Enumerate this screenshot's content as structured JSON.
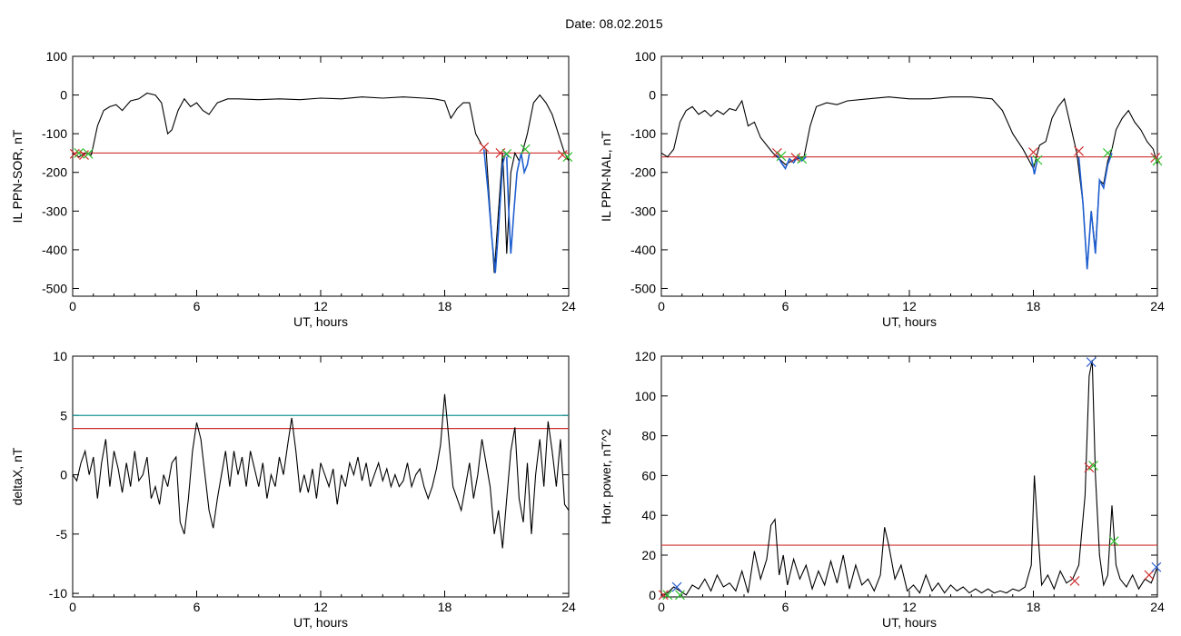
{
  "header": {
    "date_label": "Date:  08.02.2015"
  },
  "colors": {
    "trace": "#000000",
    "threshold": "#d03030",
    "threshold2": "#1a9a9a",
    "highlight": "#1f5fd0",
    "marker_red": "#d03030",
    "marker_green": "#2fc02f",
    "marker_blue": "#2f5fd0"
  },
  "chart_data": [
    {
      "type": "line",
      "id": "il-sor",
      "ylabel": "IL PPN-SOR, nT",
      "xlabel": "UT, hours",
      "xlim": [
        0,
        24
      ],
      "ylim": [
        -520,
        100
      ],
      "xticks": [
        0,
        6,
        12,
        18,
        24
      ],
      "yticks": [
        100,
        0,
        -100,
        -200,
        -300,
        -400,
        -500
      ],
      "threshold": -150,
      "series": [
        {
          "x": [
            0,
            0.3,
            0.6,
            0.9,
            1.2,
            1.5,
            1.8,
            2.1,
            2.4,
            2.8,
            3.2,
            3.6,
            4.0,
            4.3,
            4.6,
            4.8,
            5.1,
            5.4,
            5.7,
            6.0,
            6.3,
            6.6,
            7.0,
            7.5,
            8,
            9,
            10,
            11,
            12,
            13,
            14,
            15,
            16,
            17,
            17.5,
            18,
            18.3,
            18.6,
            18.9,
            19.2,
            19.5,
            19.8,
            20.0,
            20.2,
            20.4,
            20.6,
            20.8,
            20.9,
            21.0,
            21.2,
            21.4,
            21.6,
            21.8,
            22.0,
            22.3,
            22.6,
            22.9,
            23.2,
            23.5,
            23.8,
            24
          ],
          "y": [
            -150,
            -160,
            -150,
            -155,
            -80,
            -40,
            -30,
            -25,
            -40,
            -15,
            -10,
            5,
            0,
            -20,
            -100,
            -90,
            -40,
            -10,
            -30,
            -20,
            -40,
            -50,
            -20,
            -10,
            -10,
            -12,
            -10,
            -12,
            -8,
            -10,
            -5,
            -8,
            -5,
            -8,
            -10,
            -15,
            -60,
            -35,
            -20,
            -20,
            -100,
            -130,
            -140,
            -300,
            -460,
            -300,
            -150,
            -260,
            -410,
            -200,
            -150,
            -170,
            -140,
            -100,
            -20,
            0,
            -20,
            -50,
            -100,
            -150,
            -170
          ],
          "highlight": [
            {
              "x": [
                19.9,
                20.1,
                20.3,
                20.45,
                20.6,
                20.8,
                20.95,
                21.1
              ],
              "y": [
                -140,
                -250,
                -380,
                -460,
                -350,
                -180,
                -150,
                -160
              ]
            },
            {
              "x": [
                21.0,
                21.1,
                21.2,
                21.35,
                21.5,
                21.7
              ],
              "y": [
                -160,
                -300,
                -410,
                -300,
                -200,
                -150
              ]
            },
            {
              "x": [
                21.7,
                21.85,
                22.0,
                22.1
              ],
              "y": [
                -150,
                -200,
                -180,
                -150
              ]
            }
          ]
        }
      ],
      "markers": [
        {
          "x": 0.1,
          "y": -152,
          "color": "marker_red"
        },
        {
          "x": 0.3,
          "y": -150,
          "color": "marker_green"
        },
        {
          "x": 0.55,
          "y": -155,
          "color": "marker_red"
        },
        {
          "x": 0.75,
          "y": -152,
          "color": "marker_green"
        },
        {
          "x": 19.9,
          "y": -135,
          "color": "marker_red"
        },
        {
          "x": 20.7,
          "y": -150,
          "color": "marker_red"
        },
        {
          "x": 21.0,
          "y": -152,
          "color": "marker_green"
        },
        {
          "x": 21.9,
          "y": -140,
          "color": "marker_green"
        },
        {
          "x": 23.7,
          "y": -155,
          "color": "marker_red"
        },
        {
          "x": 23.95,
          "y": -160,
          "color": "marker_green"
        }
      ]
    },
    {
      "type": "line",
      "id": "il-nal",
      "ylabel": "IL PPN-NAL, nT",
      "xlabel": "UT, hours",
      "xlim": [
        0,
        24
      ],
      "ylim": [
        -520,
        100
      ],
      "xticks": [
        0,
        6,
        12,
        18,
        24
      ],
      "yticks": [
        100,
        0,
        -100,
        -200,
        -300,
        -400,
        -500
      ],
      "threshold": -160,
      "series": [
        {
          "x": [
            0,
            0.3,
            0.6,
            0.9,
            1.2,
            1.5,
            1.8,
            2.1,
            2.4,
            2.7,
            3.0,
            3.3,
            3.6,
            3.9,
            4.2,
            4.5,
            4.8,
            5.1,
            5.4,
            5.7,
            6.0,
            6.3,
            6.6,
            6.9,
            7.2,
            7.5,
            8,
            8.5,
            9,
            10,
            11,
            12,
            13,
            14,
            15,
            16,
            16.5,
            17,
            17.5,
            18,
            18.3,
            18.6,
            18.9,
            19.2,
            19.5,
            19.8,
            20.1,
            20.4,
            20.6,
            20.8,
            21.0,
            21.2,
            21.4,
            21.6,
            21.8,
            22.0,
            22.3,
            22.6,
            22.9,
            23.2,
            23.5,
            23.8,
            24
          ],
          "y": [
            -150,
            -160,
            -140,
            -70,
            -40,
            -30,
            -50,
            -40,
            -55,
            -40,
            -50,
            -35,
            -40,
            -15,
            -80,
            -70,
            -110,
            -130,
            -150,
            -165,
            -180,
            -170,
            -165,
            -160,
            -80,
            -30,
            -20,
            -25,
            -15,
            -10,
            -5,
            -10,
            -10,
            -5,
            -5,
            -10,
            -40,
            -100,
            -140,
            -190,
            -130,
            -120,
            -60,
            -30,
            -10,
            -80,
            -150,
            -280,
            -450,
            -300,
            -400,
            -220,
            -230,
            -170,
            -140,
            -90,
            -60,
            -40,
            -70,
            -90,
            -120,
            -140,
            -180
          ],
          "highlight": [
            {
              "x": [
                5.6,
                5.8,
                6.0,
                6.2,
                6.4,
                6.6,
                6.8,
                7.0
              ],
              "y": [
                -155,
                -175,
                -190,
                -165,
                -175,
                -160,
                -170,
                -160
              ]
            },
            {
              "x": [
                17.9,
                18.05,
                18.2
              ],
              "y": [
                -160,
                -205,
                -165
              ]
            },
            {
              "x": [
                20.2,
                20.4,
                20.6,
                20.8,
                21.0,
                21.2,
                21.4,
                21.6,
                21.8
              ],
              "y": [
                -160,
                -280,
                -450,
                -300,
                -410,
                -220,
                -240,
                -180,
                -150
              ]
            }
          ]
        }
      ],
      "markers": [
        {
          "x": 5.6,
          "y": -150,
          "color": "marker_red"
        },
        {
          "x": 5.8,
          "y": -158,
          "color": "marker_green"
        },
        {
          "x": 6.5,
          "y": -162,
          "color": "marker_red"
        },
        {
          "x": 6.8,
          "y": -165,
          "color": "marker_green"
        },
        {
          "x": 18.0,
          "y": -148,
          "color": "marker_red"
        },
        {
          "x": 18.2,
          "y": -168,
          "color": "marker_green"
        },
        {
          "x": 20.2,
          "y": -145,
          "color": "marker_red"
        },
        {
          "x": 21.6,
          "y": -150,
          "color": "marker_green"
        },
        {
          "x": 23.9,
          "y": -162,
          "color": "marker_red"
        },
        {
          "x": 24.0,
          "y": -170,
          "color": "marker_green"
        }
      ]
    },
    {
      "type": "line",
      "id": "delta-x",
      "ylabel": "deltaX, nT",
      "xlabel": "UT, hours",
      "xlim": [
        0,
        24
      ],
      "ylim": [
        -10.3,
        10
      ],
      "xticks": [
        0,
        6,
        12,
        18,
        24
      ],
      "yticks": [
        10,
        5,
        0,
        -5,
        -10
      ],
      "threshold": 3.9,
      "threshold2": 5.0,
      "series": [
        {
          "x": [
            0,
            0.2,
            0.4,
            0.6,
            0.8,
            1.0,
            1.2,
            1.4,
            1.6,
            1.8,
            2.0,
            2.2,
            2.4,
            2.6,
            2.8,
            3.0,
            3.2,
            3.4,
            3.6,
            3.8,
            4.0,
            4.2,
            4.4,
            4.6,
            4.8,
            5.0,
            5.2,
            5.4,
            5.6,
            5.8,
            6.0,
            6.2,
            6.4,
            6.6,
            6.8,
            7.0,
            7.2,
            7.4,
            7.6,
            7.8,
            8.0,
            8.2,
            8.4,
            8.6,
            8.8,
            9.0,
            9.2,
            9.4,
            9.6,
            9.8,
            10.0,
            10.2,
            10.4,
            10.6,
            10.8,
            11.0,
            11.2,
            11.4,
            11.6,
            11.8,
            12.0,
            12.2,
            12.4,
            12.6,
            12.8,
            13.0,
            13.2,
            13.4,
            13.6,
            13.8,
            14.0,
            14.2,
            14.4,
            14.6,
            14.8,
            15.0,
            15.2,
            15.4,
            15.6,
            15.8,
            16.0,
            16.2,
            16.4,
            16.6,
            16.8,
            17.0,
            17.2,
            17.4,
            17.6,
            17.8,
            18.0,
            18.2,
            18.4,
            18.6,
            18.8,
            19.0,
            19.2,
            19.4,
            19.6,
            19.8,
            20.0,
            20.2,
            20.4,
            20.6,
            20.8,
            21.0,
            21.2,
            21.4,
            21.6,
            21.8,
            22.0,
            22.2,
            22.4,
            22.6,
            22.8,
            23.0,
            23.2,
            23.4,
            23.6,
            23.8,
            24.0
          ],
          "y": [
            0,
            -0.5,
            1,
            2,
            0,
            1.5,
            -2,
            1,
            3,
            -1,
            2,
            0.5,
            -1.5,
            1,
            -1,
            2,
            -0.5,
            0,
            1.5,
            -2,
            -1,
            -2.5,
            0,
            -1,
            1,
            1.5,
            -4,
            -5,
            -2,
            2,
            4.4,
            3,
            0,
            -3,
            -4.5,
            -2,
            0,
            2,
            -1,
            2,
            0,
            1.5,
            -1,
            2,
            0.5,
            -1,
            1,
            -2,
            0,
            -1,
            1.5,
            0,
            2.5,
            4.8,
            2,
            -1.5,
            0,
            -1.5,
            0.5,
            -2,
            1,
            0,
            -1,
            0.5,
            -2.5,
            0,
            -1,
            1,
            0,
            1.5,
            -0.5,
            1,
            -1,
            0,
            1,
            -0.5,
            0.5,
            -1,
            0,
            -1,
            -0.5,
            1,
            -1,
            0,
            0.5,
            -1,
            -2,
            -1,
            0.5,
            2.5,
            6.8,
            3,
            -1,
            -2,
            -3,
            -1,
            1,
            -2,
            0,
            3,
            1,
            -1,
            -5,
            -3,
            -6.2,
            -2,
            2,
            4,
            -2,
            -4,
            1,
            -5,
            0,
            3,
            -1,
            4.5,
            2,
            -1,
            3,
            -2.5,
            -3
          ]
        }
      ],
      "markers": []
    },
    {
      "type": "line",
      "id": "hor-power",
      "ylabel": "Hor. power, nT^2",
      "xlabel": "UT, hours",
      "xlim": [
        0,
        24
      ],
      "ylim": [
        -1,
        120
      ],
      "xticks": [
        0,
        6,
        12,
        18,
        24
      ],
      "yticks": [
        120,
        100,
        80,
        60,
        40,
        20,
        0
      ],
      "threshold": 25,
      "series": [
        {
          "x": [
            0,
            0.3,
            0.6,
            0.9,
            1.2,
            1.5,
            1.8,
            2.1,
            2.4,
            2.7,
            3.0,
            3.3,
            3.6,
            3.9,
            4.2,
            4.5,
            4.8,
            5.1,
            5.3,
            5.5,
            5.7,
            5.9,
            6.1,
            6.4,
            6.7,
            7.0,
            7.3,
            7.6,
            7.9,
            8.2,
            8.5,
            8.8,
            9.1,
            9.4,
            9.7,
            10.0,
            10.3,
            10.6,
            10.8,
            11.0,
            11.3,
            11.6,
            11.9,
            12.2,
            12.5,
            12.8,
            13.1,
            13.4,
            13.7,
            14.0,
            14.3,
            14.6,
            14.9,
            15.2,
            15.5,
            15.8,
            16.1,
            16.4,
            16.7,
            17.0,
            17.3,
            17.6,
            17.9,
            18.05,
            18.2,
            18.4,
            18.7,
            19.0,
            19.3,
            19.6,
            19.9,
            20.2,
            20.5,
            20.7,
            20.85,
            21.0,
            21.2,
            21.4,
            21.6,
            21.8,
            22.0,
            22.2,
            22.5,
            22.8,
            23.1,
            23.4,
            23.7,
            24.0
          ],
          "y": [
            0,
            1,
            4,
            2,
            0,
            5,
            3,
            8,
            2,
            10,
            4,
            6,
            2,
            12,
            1,
            22,
            8,
            18,
            35,
            38,
            10,
            20,
            5,
            18,
            8,
            15,
            3,
            12,
            5,
            17,
            6,
            20,
            3,
            15,
            5,
            8,
            2,
            10,
            34,
            25,
            8,
            15,
            2,
            5,
            1,
            10,
            2,
            6,
            1,
            5,
            2,
            4,
            1,
            3,
            1,
            3,
            1,
            2,
            1,
            3,
            2,
            4,
            15,
            60,
            35,
            5,
            10,
            3,
            12,
            6,
            8,
            15,
            50,
            110,
            118,
            60,
            20,
            5,
            10,
            45,
            15,
            8,
            4,
            10,
            3,
            8,
            6,
            14
          ]
        }
      ],
      "markers": [
        {
          "x": 0.1,
          "y": 0,
          "color": "marker_red"
        },
        {
          "x": 0.3,
          "y": 0,
          "color": "marker_green"
        },
        {
          "x": 0.75,
          "y": 4,
          "color": "marker_blue"
        },
        {
          "x": 0.9,
          "y": 0,
          "color": "marker_green"
        },
        {
          "x": 20.0,
          "y": 7,
          "color": "marker_red"
        },
        {
          "x": 20.7,
          "y": 64,
          "color": "marker_red"
        },
        {
          "x": 20.9,
          "y": 65,
          "color": "marker_green"
        },
        {
          "x": 20.8,
          "y": 117,
          "color": "marker_blue"
        },
        {
          "x": 21.9,
          "y": 27,
          "color": "marker_green"
        },
        {
          "x": 23.6,
          "y": 10,
          "color": "marker_red"
        },
        {
          "x": 23.95,
          "y": 14,
          "color": "marker_blue"
        }
      ]
    }
  ]
}
